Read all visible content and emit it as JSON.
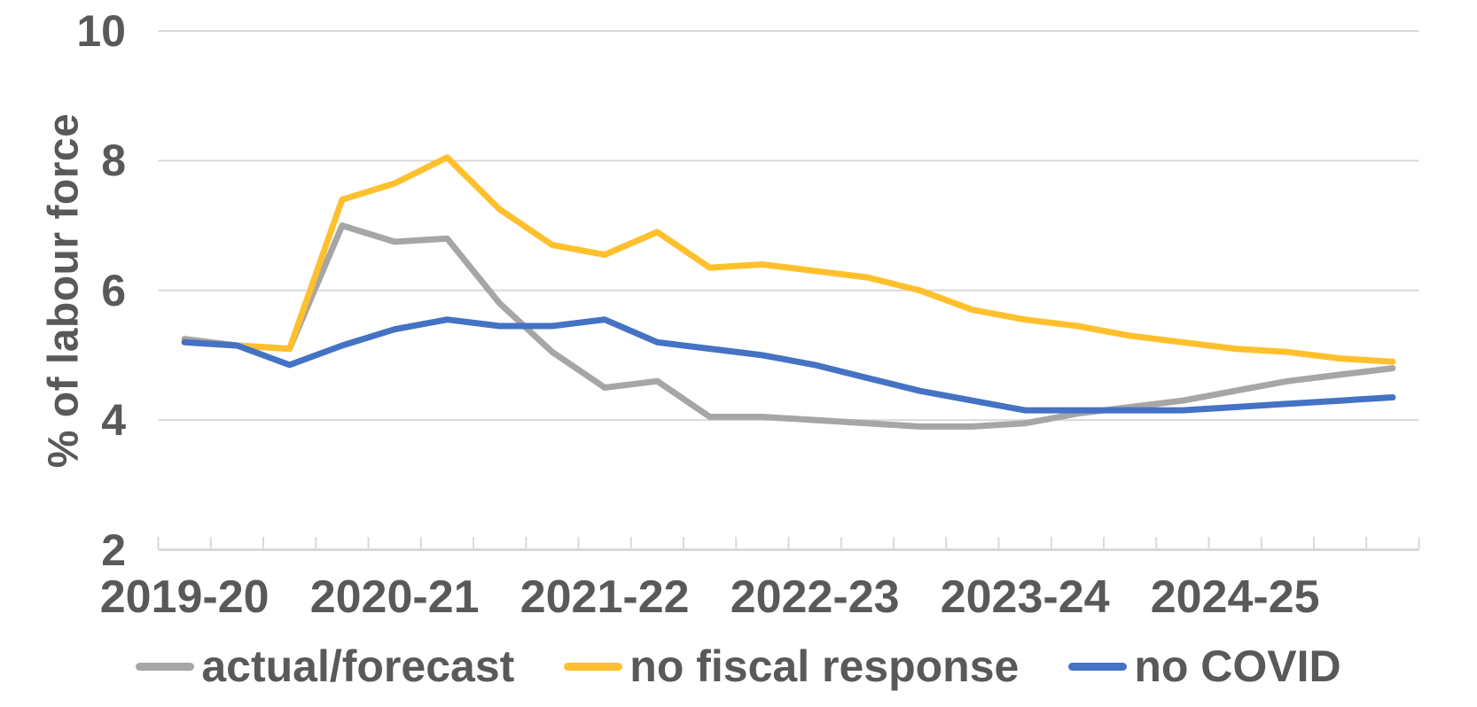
{
  "chart_data": {
    "type": "line",
    "title": "",
    "ylabel": "% of labour force",
    "xlabel": "",
    "x_year_labels": [
      "2019-20",
      "2020-21",
      "2021-22",
      "2022-23",
      "2023-24",
      "2024-25"
    ],
    "x_unit": "quarterly, 4 data points per labelled year",
    "ylim": [
      2,
      10
    ],
    "yticks": [
      2,
      4,
      6,
      8,
      10
    ],
    "gridline_yticks": [
      4,
      6,
      8,
      10
    ],
    "grid": "horizontal",
    "legend_position": "bottom",
    "series": [
      {
        "name": "actual/forecast",
        "color": "#A6A6A6",
        "values": [
          5.25,
          5.15,
          5.1,
          7.0,
          6.75,
          6.8,
          5.8,
          5.05,
          4.5,
          4.6,
          4.05,
          4.05,
          4.0,
          3.95,
          3.9,
          3.9,
          3.95,
          4.1,
          4.2,
          4.3,
          4.45,
          4.6,
          4.7,
          4.8
        ]
      },
      {
        "name": "no fiscal response",
        "color": "#FFC02E",
        "values": [
          5.2,
          5.15,
          5.1,
          7.4,
          7.65,
          8.05,
          7.25,
          6.7,
          6.55,
          6.9,
          6.35,
          6.4,
          6.3,
          6.2,
          6.0,
          5.7,
          5.55,
          5.45,
          5.3,
          5.2,
          5.1,
          5.05,
          4.95,
          4.9
        ]
      },
      {
        "name": "no COVID",
        "color": "#4472C4",
        "values": [
          5.2,
          5.15,
          4.85,
          5.15,
          5.4,
          5.55,
          5.45,
          5.45,
          5.55,
          5.2,
          5.1,
          5.0,
          4.85,
          4.65,
          4.45,
          4.3,
          4.15,
          4.15,
          4.15,
          4.15,
          4.2,
          4.25,
          4.3,
          4.35
        ]
      }
    ],
    "colors": {
      "grid": "#D9D9D9",
      "axis": "#D9D9D9",
      "tick": "#D9D9D9",
      "text": "#595959",
      "background": "#FFFFFF"
    }
  }
}
